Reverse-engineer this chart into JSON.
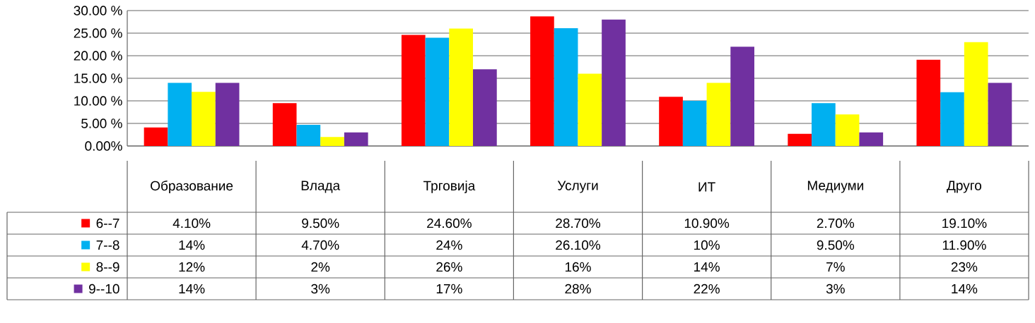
{
  "chart_data": {
    "type": "bar",
    "categories": [
      "Образование",
      "Влада",
      "Трговија",
      "Услуги",
      "ИТ",
      "Медиуми",
      "Друго"
    ],
    "series": [
      {
        "name": "6--7",
        "color": "#ff0000",
        "values": [
          4.1,
          9.5,
          24.6,
          28.7,
          10.9,
          2.7,
          19.1
        ],
        "value_labels": [
          "4.10%",
          "9.50%",
          "24.60%",
          "28.70%",
          "10.90%",
          "2.70%",
          "19.10%"
        ]
      },
      {
        "name": "7--8",
        "color": "#00b0f0",
        "values": [
          14,
          4.7,
          24,
          26.1,
          10,
          9.5,
          11.9
        ],
        "value_labels": [
          "14%",
          "4.70%",
          "24%",
          "26.10%",
          "10%",
          "9.50%",
          "11.90%"
        ]
      },
      {
        "name": "8--9",
        "color": "#ffff00",
        "values": [
          12,
          2,
          26,
          16,
          14,
          7,
          23
        ],
        "value_labels": [
          "12%",
          "2%",
          "26%",
          "16%",
          "14%",
          "7%",
          "23%"
        ]
      },
      {
        "name": "9--10",
        "color": "#7030a0",
        "values": [
          14,
          3,
          17,
          28,
          22,
          3,
          14
        ],
        "value_labels": [
          "14%",
          "3%",
          "17%",
          "28%",
          "22%",
          "3%",
          "14%"
        ]
      }
    ],
    "ylim": [
      0,
      30
    ],
    "yticks": [
      {
        "value": 0,
        "label": "0.00%"
      },
      {
        "value": 5,
        "label": "5.00 %"
      },
      {
        "value": 10,
        "label": "10.00 %"
      },
      {
        "value": 15,
        "label": "15.00 %"
      },
      {
        "value": 20,
        "label": "20.00 %"
      },
      {
        "value": 25,
        "label": "25.00 %"
      },
      {
        "value": 30,
        "label": "30.00 %"
      }
    ],
    "grid": "y",
    "legend": "bottom left"
  }
}
